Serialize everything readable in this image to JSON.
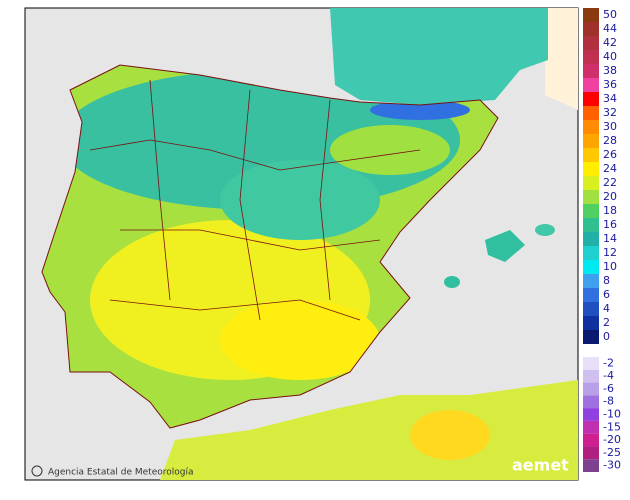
{
  "legend": {
    "upper": [
      {
        "label": "50",
        "color": "#8b3a0f"
      },
      {
        "label": "44",
        "color": "#a0302a"
      },
      {
        "label": "42",
        "color": "#b03040"
      },
      {
        "label": "40",
        "color": "#c03050"
      },
      {
        "label": "38",
        "color": "#d0306a"
      },
      {
        "label": "36",
        "color": "#f040a0"
      },
      {
        "label": "34",
        "color": "#ff0000"
      },
      {
        "label": "32",
        "color": "#ff6000"
      },
      {
        "label": "30",
        "color": "#ff8c00"
      },
      {
        "label": "28",
        "color": "#ffa500"
      },
      {
        "label": "26",
        "color": "#ffc800"
      },
      {
        "label": "24",
        "color": "#ffee00"
      },
      {
        "label": "22",
        "color": "#d8f020"
      },
      {
        "label": "20",
        "color": "#a0e040"
      },
      {
        "label": "18",
        "color": "#50d060"
      },
      {
        "label": "16",
        "color": "#30c090"
      },
      {
        "label": "14",
        "color": "#20b0a8"
      },
      {
        "label": "12",
        "color": "#20d0d0"
      },
      {
        "label": "10",
        "color": "#00e8f0"
      },
      {
        "label": "8",
        "color": "#40a0f0"
      },
      {
        "label": "6",
        "color": "#3070e0"
      },
      {
        "label": "4",
        "color": "#2050c0"
      },
      {
        "label": "2",
        "color": "#1030a0"
      },
      {
        "label": "0",
        "color": "#0a1a70"
      }
    ],
    "lower": [
      {
        "label": "-2",
        "color": "#e8e0f8"
      },
      {
        "label": "-4",
        "color": "#d0c0f0"
      },
      {
        "label": "-6",
        "color": "#b8a0e8"
      },
      {
        "label": "-8",
        "color": "#a070e0"
      },
      {
        "label": "-10",
        "color": "#9040e0"
      },
      {
        "label": "-15",
        "color": "#c030b0"
      },
      {
        "label": "-20",
        "color": "#d02090"
      },
      {
        "label": "-25",
        "color": "#b02080"
      },
      {
        "label": "-30",
        "color": "#804090"
      }
    ]
  },
  "credit": "Agencia Estatal de Meteorología",
  "logo": "aemet"
}
